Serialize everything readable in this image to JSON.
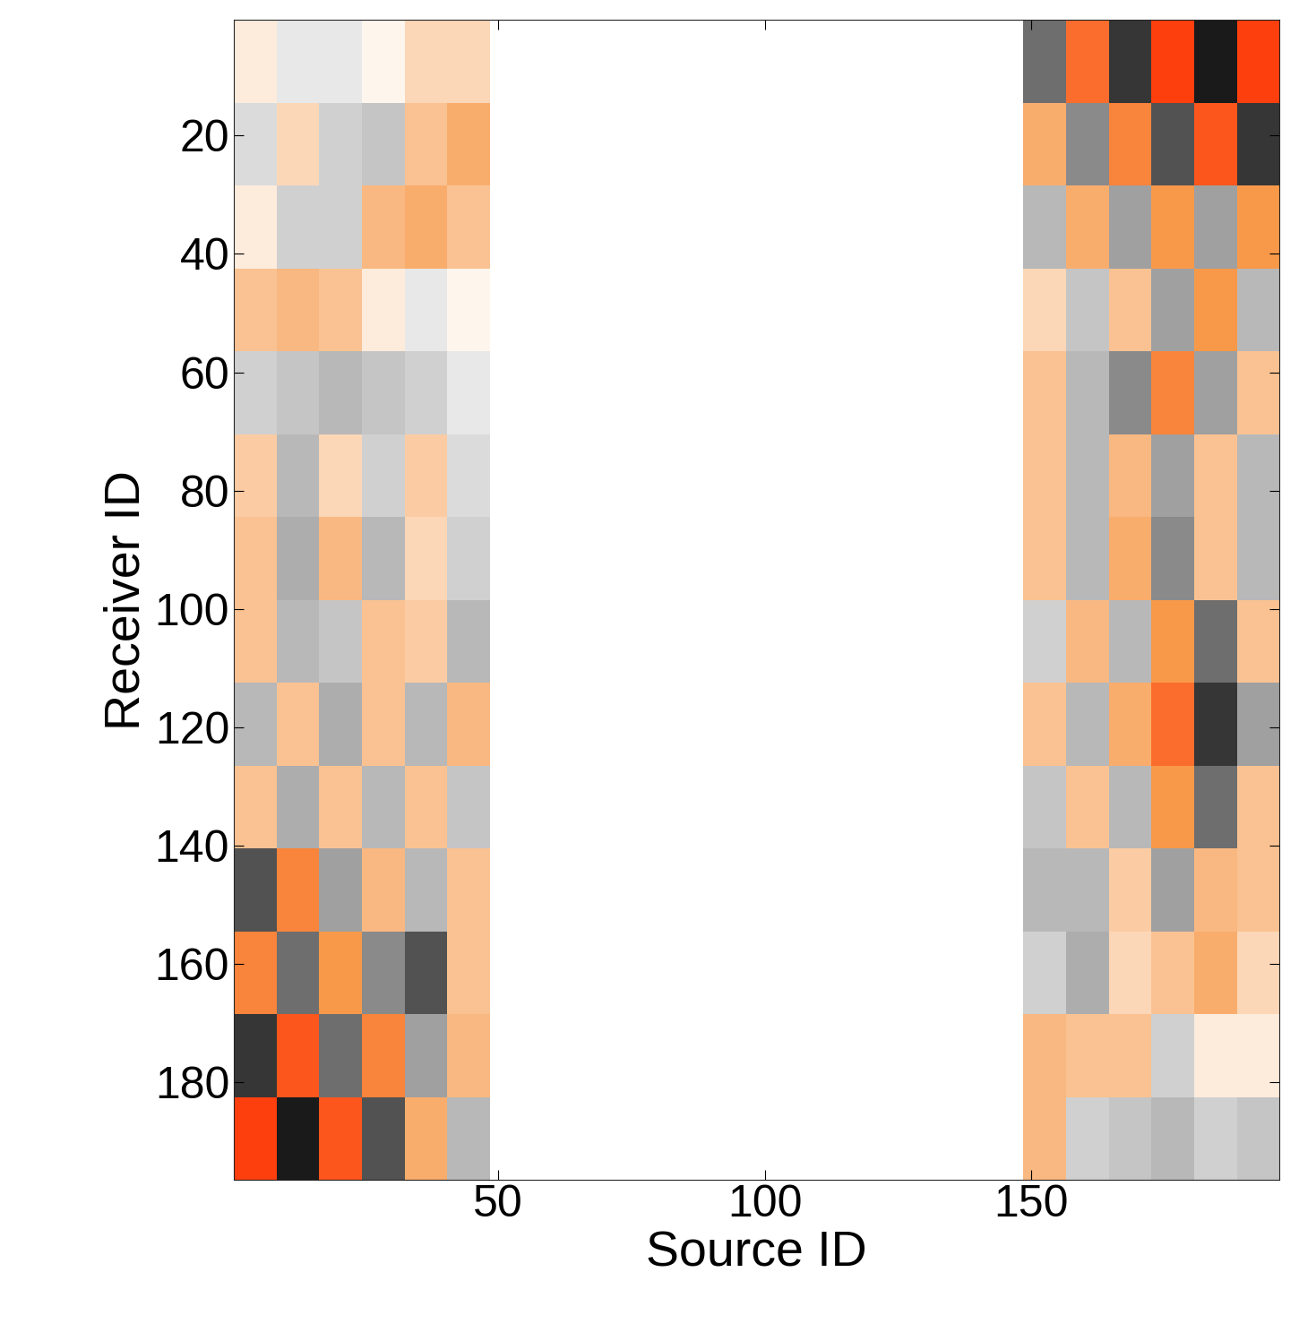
{
  "chart_data": {
    "type": "heatmap",
    "x_label": "Source ID",
    "y_label": "Receiver ID",
    "x_edges": [
      0.5,
      8.5,
      16.5,
      24.5,
      32.5,
      40.5,
      48.5,
      148.5,
      156.5,
      164.5,
      172.5,
      180.5,
      188.5,
      196.5
    ],
    "y_edges": [
      0.5,
      14.5,
      28.5,
      42.5,
      56.5,
      70.5,
      84.5,
      98.5,
      112.5,
      126.5,
      140.5,
      154.5,
      168.5,
      182.5,
      196.5
    ],
    "cells": [
      [
        0.1,
        -0.1,
        -0.1,
        0.05,
        0.2,
        0.2,
        null,
        -0.6,
        0.7,
        -0.8,
        0.9,
        -0.9,
        0.9
      ],
      [
        -0.15,
        0.2,
        -0.2,
        -0.25,
        0.3,
        0.4,
        null,
        0.4,
        -0.5,
        0.6,
        -0.7,
        0.8,
        -0.8
      ],
      [
        0.1,
        -0.2,
        -0.2,
        0.35,
        0.4,
        0.3,
        null,
        -0.3,
        0.4,
        -0.4,
        0.5,
        -0.4,
        0.5
      ],
      [
        0.3,
        0.35,
        0.3,
        0.1,
        -0.1,
        0.05,
        null,
        0.2,
        -0.25,
        0.3,
        -0.4,
        0.5,
        -0.3
      ],
      [
        -0.2,
        -0.25,
        -0.3,
        -0.25,
        -0.2,
        -0.1,
        null,
        0.3,
        -0.3,
        -0.5,
        0.6,
        -0.4,
        0.3
      ],
      [
        0.25,
        -0.3,
        0.2,
        -0.2,
        0.25,
        -0.15,
        null,
        0.3,
        -0.3,
        0.35,
        -0.4,
        0.3,
        -0.3
      ],
      [
        0.3,
        -0.35,
        0.35,
        -0.3,
        0.2,
        -0.2,
        null,
        0.3,
        -0.3,
        0.4,
        -0.5,
        0.3,
        -0.3
      ],
      [
        0.3,
        -0.3,
        -0.25,
        0.3,
        0.25,
        -0.3,
        null,
        -0.2,
        0.35,
        -0.3,
        0.5,
        -0.6,
        0.3
      ],
      [
        -0.3,
        0.3,
        -0.35,
        0.3,
        -0.3,
        0.35,
        null,
        0.3,
        -0.3,
        0.4,
        0.7,
        -0.8,
        -0.4
      ],
      [
        0.3,
        -0.35,
        0.3,
        -0.3,
        0.3,
        -0.25,
        null,
        -0.25,
        0.3,
        -0.3,
        0.5,
        -0.6,
        0.3
      ],
      [
        -0.7,
        0.6,
        -0.4,
        0.35,
        -0.3,
        0.3,
        null,
        -0.3,
        -0.3,
        0.25,
        -0.4,
        0.35,
        0.3
      ],
      [
        0.6,
        -0.6,
        0.5,
        -0.5,
        -0.7,
        0.3,
        null,
        -0.2,
        -0.35,
        0.2,
        0.3,
        0.4,
        0.2
      ],
      [
        -0.8,
        0.8,
        -0.6,
        0.6,
        -0.4,
        0.35,
        null,
        0.35,
        0.3,
        0.3,
        -0.2,
        0.1,
        0.1
      ],
      [
        0.9,
        -0.9,
        0.8,
        -0.7,
        0.4,
        -0.3,
        null,
        0.35,
        -0.2,
        -0.25,
        -0.3,
        -0.2,
        -0.25
      ]
    ],
    "color_range": [
      -1,
      1
    ],
    "xlim": [
      0.5,
      196.5
    ],
    "ylim": [
      196.5,
      0.5
    ],
    "xticks": [
      50,
      100,
      150
    ],
    "yticks": [
      20,
      40,
      60,
      80,
      100,
      120,
      140,
      160,
      180
    ]
  }
}
